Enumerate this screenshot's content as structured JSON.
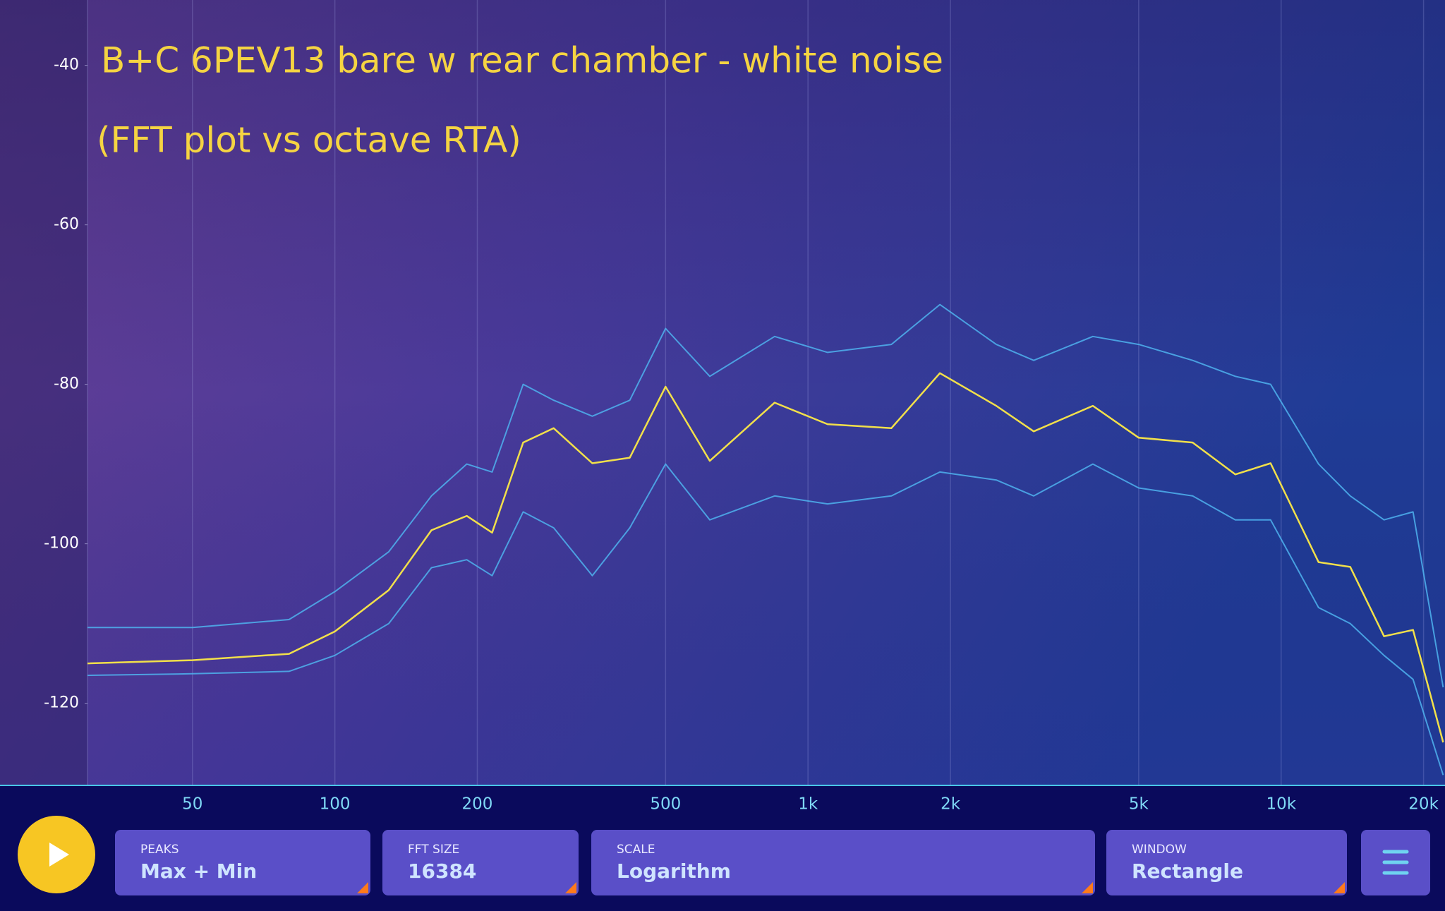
{
  "chart_data": {
    "type": "line",
    "title": "B+C 6PEV13 bare w rear chamber - white noise",
    "subtitle": "(FFT plot vs octave RTA)",
    "x": [
      30,
      50,
      80,
      100,
      130,
      160,
      190,
      215,
      250,
      290,
      350,
      420,
      500,
      620,
      850,
      1100,
      1500,
      1900,
      2500,
      3000,
      4000,
      5000,
      6500,
      8000,
      9500,
      12000,
      14000,
      16500,
      19000,
      22000
    ],
    "series": [
      {
        "color": "#4fb3ef",
        "values": [
          -110.5,
          -110.5,
          -109.5,
          -106,
          -101,
          -94,
          -90,
          -91,
          -80,
          -82,
          -84,
          -82,
          -73,
          -79,
          -74,
          -76,
          -75,
          -70,
          -75,
          -77,
          -74,
          -75,
          -77,
          -79,
          -80,
          -90,
          -94,
          -97,
          -96,
          -118
        ]
      },
      {
        "color": "#4fb3ef",
        "values": [
          -116.5,
          -116.3,
          -116,
          -114,
          -110,
          -103,
          -102,
          -104,
          -96,
          -98,
          -104,
          -98,
          -90,
          -97,
          -94,
          -95,
          -94,
          -91,
          -92,
          -94,
          -90,
          -93,
          -94,
          -97,
          -97,
          -108,
          -110,
          -114,
          -117,
          -129
        ]
      },
      {
        "color": "#f2e04a",
        "values": [
          -115,
          -114.6,
          -113.8,
          -111,
          -105.8,
          -98.3,
          -96.5,
          -98.6,
          -87.3,
          -85.5,
          -89.9,
          -89.2,
          -80.3,
          -89.6,
          -82.3,
          -85,
          -85.5,
          -78.6,
          -82.7,
          -85.9,
          -82.7,
          -86.7,
          -87.3,
          -91.3,
          -89.9,
          -102.3,
          -102.9,
          -111.6,
          -110.8,
          -124.9
        ]
      }
    ],
    "xscale": "log",
    "xlim": [
      30,
      22200
    ],
    "xticks": [
      50,
      100,
      200,
      500,
      {
        "value": 1000,
        "label": "1k"
      },
      {
        "value": 2000,
        "label": "2k"
      },
      {
        "value": 5000,
        "label": "5k"
      },
      {
        "value": 10000,
        "label": "10k"
      },
      {
        "value": 20000,
        "label": "20k"
      }
    ],
    "ylim": [
      -130.3,
      -31.8
    ],
    "yticks": [
      -120,
      -100,
      -80,
      -60,
      -40
    ],
    "grid": "x"
  },
  "controls": [
    {
      "label": "PEAKS",
      "value": "Max + Min"
    },
    {
      "label": "FFT SIZE",
      "value": "16384"
    },
    {
      "label": "SCALE",
      "value": "Logarithm"
    },
    {
      "label": "WINDOW",
      "value": "Rectangle"
    }
  ]
}
